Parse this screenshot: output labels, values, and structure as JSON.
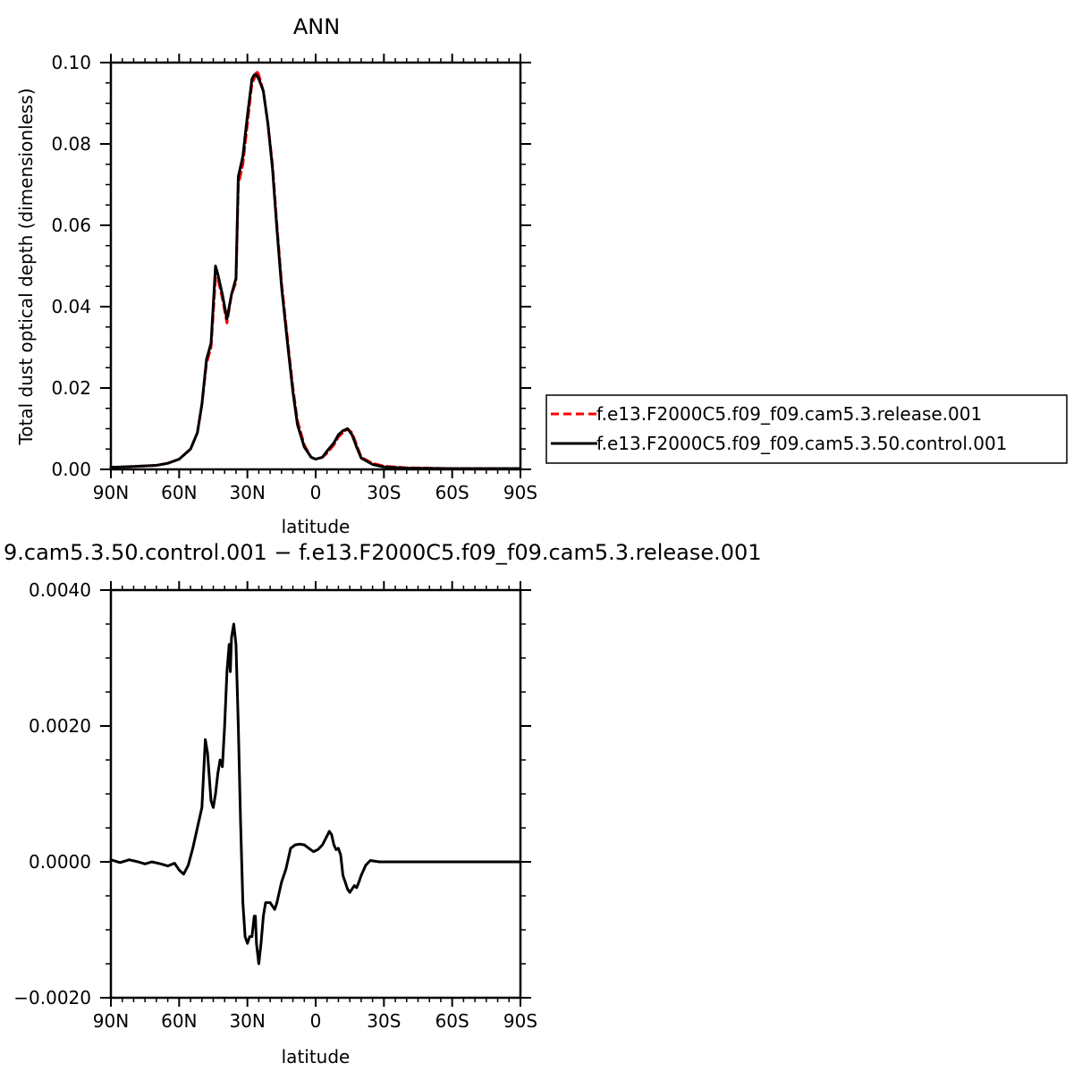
{
  "chart_data": [
    {
      "type": "line",
      "title": "ANN",
      "xlabel": "latitude",
      "ylabel": "Total dust optical depth (dimensionless)",
      "xlim": [
        90,
        -90
      ],
      "ylim": [
        0.0,
        0.1
      ],
      "x_tick_values": [
        90,
        60,
        30,
        0,
        -30,
        -60,
        -90
      ],
      "x_tick_labels": [
        "90N",
        "60N",
        "30N",
        "0",
        "30S",
        "60S",
        "90S"
      ],
      "y_tick_values": [
        0.0,
        0.02,
        0.04,
        0.06,
        0.08,
        0.1
      ],
      "y_tick_labels": [
        "0.00",
        "0.02",
        "0.04",
        "0.06",
        "0.08",
        "0.10"
      ],
      "grid": false,
      "legend_position": "right",
      "series": [
        {
          "name": "f.e13.F2000C5.f09_f09.cam5.3.release.001",
          "color": "#ff0000",
          "dash": "dashed",
          "points": [
            [
              90,
              0.0005
            ],
            [
              80,
              0.0007
            ],
            [
              70,
              0.001
            ],
            [
              65,
              0.0015
            ],
            [
              60,
              0.0025
            ],
            [
              55,
              0.005
            ],
            [
              52,
              0.009
            ],
            [
              50,
              0.016
            ],
            [
              48,
              0.026
            ],
            [
              46,
              0.03
            ],
            [
              44,
              0.047
            ],
            [
              43,
              0.047
            ],
            [
              41,
              0.042
            ],
            [
              39,
              0.036
            ],
            [
              37,
              0.043
            ],
            [
              35,
              0.046
            ],
            [
              34,
              0.07
            ],
            [
              32,
              0.075
            ],
            [
              30,
              0.085
            ],
            [
              28,
              0.095
            ],
            [
              27,
              0.096
            ],
            [
              26,
              0.098
            ],
            [
              25,
              0.097
            ],
            [
              23,
              0.093
            ],
            [
              21,
              0.085
            ],
            [
              19,
              0.075
            ],
            [
              17,
              0.06
            ],
            [
              15,
              0.046
            ],
            [
              12,
              0.03
            ],
            [
              10,
              0.02
            ],
            [
              8,
              0.012
            ],
            [
              5,
              0.006
            ],
            [
              2,
              0.003
            ],
            [
              0,
              0.0025
            ],
            [
              -3,
              0.003
            ],
            [
              -5,
              0.004
            ],
            [
              -8,
              0.006
            ],
            [
              -10,
              0.008
            ],
            [
              -12,
              0.009
            ],
            [
              -14,
              0.01
            ],
            [
              -16,
              0.009
            ],
            [
              -18,
              0.006
            ],
            [
              -20,
              0.003
            ],
            [
              -25,
              0.0015
            ],
            [
              -30,
              0.0008
            ],
            [
              -40,
              0.0004
            ],
            [
              -60,
              0.0002
            ],
            [
              -90,
              0.0002
            ]
          ]
        },
        {
          "name": "f.e13.F2000C5.f09_f09.cam5.3.50.control.001",
          "color": "#000000",
          "dash": "solid",
          "points": [
            [
              90,
              0.0005
            ],
            [
              80,
              0.0007
            ],
            [
              70,
              0.001
            ],
            [
              65,
              0.0015
            ],
            [
              60,
              0.0025
            ],
            [
              55,
              0.005
            ],
            [
              52,
              0.009
            ],
            [
              50,
              0.016
            ],
            [
              48,
              0.027
            ],
            [
              46,
              0.031
            ],
            [
              44,
              0.05
            ],
            [
              43,
              0.048
            ],
            [
              41,
              0.043
            ],
            [
              39,
              0.037
            ],
            [
              37,
              0.043
            ],
            [
              35,
              0.047
            ],
            [
              34,
              0.072
            ],
            [
              32,
              0.077
            ],
            [
              30,
              0.087
            ],
            [
              28,
              0.096
            ],
            [
              27,
              0.097
            ],
            [
              26,
              0.097
            ],
            [
              25,
              0.096
            ],
            [
              23,
              0.093
            ],
            [
              21,
              0.085
            ],
            [
              19,
              0.074
            ],
            [
              17,
              0.059
            ],
            [
              15,
              0.045
            ],
            [
              12,
              0.029
            ],
            [
              10,
              0.019
            ],
            [
              8,
              0.011
            ],
            [
              5,
              0.0055
            ],
            [
              2,
              0.003
            ],
            [
              0,
              0.0025
            ],
            [
              -3,
              0.003
            ],
            [
              -5,
              0.0045
            ],
            [
              -8,
              0.0065
            ],
            [
              -10,
              0.0085
            ],
            [
              -12,
              0.0095
            ],
            [
              -14,
              0.01
            ],
            [
              -16,
              0.0085
            ],
            [
              -18,
              0.0055
            ],
            [
              -20,
              0.0028
            ],
            [
              -25,
              0.0012
            ],
            [
              -30,
              0.0006
            ],
            [
              -40,
              0.0003
            ],
            [
              -60,
              0.0002
            ],
            [
              -90,
              0.0002
            ]
          ]
        }
      ]
    },
    {
      "type": "line",
      "title": "9.cam5.3.50.control.001 − f.e13.F2000C5.f09_f09.cam5.3.release.001",
      "xlabel": "latitude",
      "ylabel": "",
      "xlim": [
        90,
        -90
      ],
      "ylim": [
        -0.002,
        0.004
      ],
      "x_tick_values": [
        90,
        60,
        30,
        0,
        -30,
        -60,
        -90
      ],
      "x_tick_labels": [
        "90N",
        "60N",
        "30N",
        "0",
        "30S",
        "60S",
        "90S"
      ],
      "y_tick_values": [
        -0.002,
        0.0,
        0.002,
        0.004
      ],
      "y_tick_labels": [
        "−0.0020",
        "0.0000",
        "0.0020",
        "0.0040"
      ],
      "grid": false,
      "series": [
        {
          "color": "#000000",
          "dash": "solid",
          "points": [
            [
              90,
              3e-05
            ],
            [
              86,
              -1e-05
            ],
            [
              82,
              3e-05
            ],
            [
              78,
              0.0
            ],
            [
              75,
              -3e-05
            ],
            [
              72,
              0.0
            ],
            [
              68,
              -3e-05
            ],
            [
              65,
              -6e-05
            ],
            [
              62,
              -2e-05
            ],
            [
              60,
              -0.00012
            ],
            [
              58,
              -0.00018
            ],
            [
              56,
              -5e-05
            ],
            [
              54,
              0.0002
            ],
            [
              52,
              0.0005
            ],
            [
              50,
              0.0008
            ],
            [
              48.5,
              0.0018
            ],
            [
              47.5,
              0.0016
            ],
            [
              46,
              0.0009
            ],
            [
              45,
              0.0008
            ],
            [
              44,
              0.001
            ],
            [
              43,
              0.0013
            ],
            [
              42,
              0.0015
            ],
            [
              41,
              0.0014
            ],
            [
              40,
              0.002
            ],
            [
              39,
              0.0028
            ],
            [
              38,
              0.0032
            ],
            [
              37.5,
              0.0028
            ],
            [
              37,
              0.0033
            ],
            [
              36,
              0.0035
            ],
            [
              35,
              0.0032
            ],
            [
              34,
              0.002
            ],
            [
              33,
              0.0006
            ],
            [
              32,
              -0.0006
            ],
            [
              31,
              -0.0011
            ],
            [
              30,
              -0.0012
            ],
            [
              29,
              -0.0011
            ],
            [
              28,
              -0.0011
            ],
            [
              27,
              -0.0008
            ],
            [
              26.5,
              -0.0008
            ],
            [
              26,
              -0.0012
            ],
            [
              25,
              -0.0015
            ],
            [
              24,
              -0.0012
            ],
            [
              23,
              -0.0008
            ],
            [
              22,
              -0.0006
            ],
            [
              20,
              -0.0006
            ],
            [
              18,
              -0.0007
            ],
            [
              17,
              -0.0006
            ],
            [
              15,
              -0.0003
            ],
            [
              13,
              -0.0001
            ],
            [
              11,
              0.0002
            ],
            [
              9,
              0.00025
            ],
            [
              7,
              0.00026
            ],
            [
              5,
              0.00025
            ],
            [
              3,
              0.0002
            ],
            [
              1,
              0.00015
            ],
            [
              -1,
              0.00018
            ],
            [
              -3,
              0.00025
            ],
            [
              -5,
              0.00038
            ],
            [
              -6,
              0.00045
            ],
            [
              -7,
              0.0004
            ],
            [
              -8,
              0.00025
            ],
            [
              -9,
              0.00018
            ],
            [
              -10,
              0.0002
            ],
            [
              -11,
              0.0001
            ],
            [
              -12,
              -0.0002
            ],
            [
              -13,
              -0.0003
            ],
            [
              -14,
              -0.0004
            ],
            [
              -15,
              -0.00045
            ],
            [
              -16,
              -0.0004
            ],
            [
              -17,
              -0.00035
            ],
            [
              -18,
              -0.00038
            ],
            [
              -19,
              -0.0003
            ],
            [
              -20,
              -0.0002
            ],
            [
              -22,
              -5e-05
            ],
            [
              -24,
              2e-05
            ],
            [
              -28,
              0.0
            ],
            [
              -35,
              0.0
            ],
            [
              -45,
              0.0
            ],
            [
              -60,
              0.0
            ],
            [
              -75,
              0.0
            ],
            [
              -90,
              0.0
            ]
          ]
        }
      ]
    }
  ]
}
